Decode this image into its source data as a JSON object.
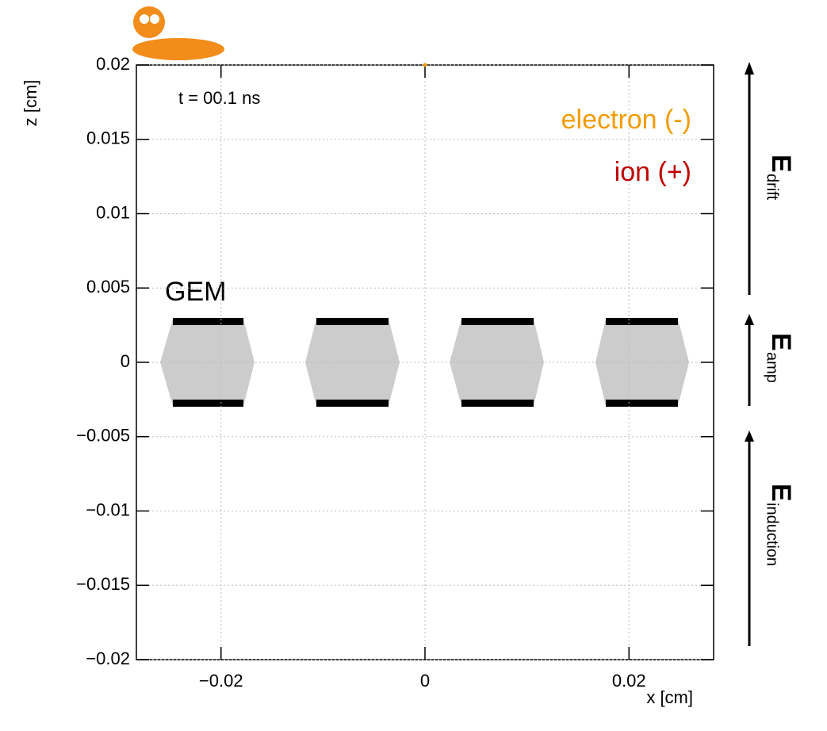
{
  "chart_data": {
    "type": "scatter",
    "x_label": "x [cm]",
    "y_label": "z [cm]",
    "xlim": [
      -0.0283,
      0.0283
    ],
    "ylim": [
      -0.02,
      0.02
    ],
    "xticks": [
      {
        "value": -0.02,
        "label": "−0.02"
      },
      0,
      0.02
    ],
    "yticks": [
      {
        "value": -0.02,
        "label": "−0.02"
      },
      {
        "value": -0.015,
        "label": "−0.015"
      },
      {
        "value": -0.01,
        "label": "−0.01"
      },
      {
        "value": -0.005,
        "label": "−0.005"
      },
      0,
      0.005,
      0.01,
      0.015,
      0.02
    ],
    "grid": true,
    "series": [
      {
        "name": "electron (-)",
        "color": "#f29b00",
        "x": [
          0
        ],
        "values": [
          0.02
        ]
      },
      {
        "name": "ion (+)",
        "color": "#c00000",
        "x": [],
        "values": []
      }
    ],
    "annotations": {
      "time": "t = 00.1 ns",
      "gem": "GEM",
      "field": "E",
      "drift": "drift",
      "amp": "amp",
      "induction": "induction"
    }
  }
}
